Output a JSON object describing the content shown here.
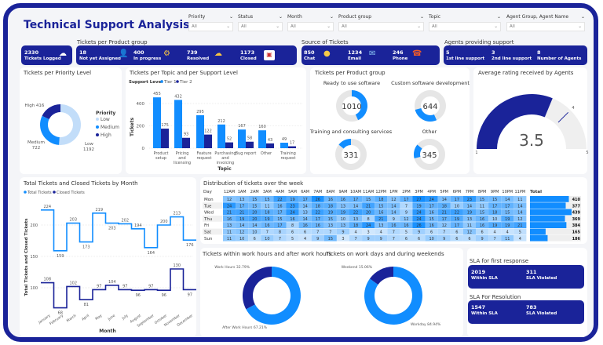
{
  "header": {
    "title": "Technical Support Analysis"
  },
  "filters": [
    {
      "label": "Priority",
      "value": "All"
    },
    {
      "label": "Status",
      "value": "All"
    },
    {
      "label": "Month",
      "value": "All"
    },
    {
      "label": "Product group",
      "value": "All"
    },
    {
      "label": "Topic",
      "value": "All"
    },
    {
      "label": "Agent Group, Agent Name",
      "value": "All"
    }
  ],
  "kpis": {
    "product_group_label": "Tickets per Product group",
    "logged": {
      "value": "2330",
      "label": "Tickets Logged",
      "icon": "ticket-cloud-icon"
    },
    "status": [
      {
        "value": "18",
        "label": "Not yet Assigned",
        "icon": "unassigned-user-icon"
      },
      {
        "value": "400",
        "label": "In progress",
        "icon": "gear-hand-icon"
      },
      {
        "value": "739",
        "label": "Resolved",
        "icon": "cloud-gear-icon"
      },
      {
        "value": "1173",
        "label": "Closed",
        "icon": "closed-sign-icon"
      }
    ],
    "source_label": "Source of Tickets",
    "source": [
      {
        "value": "850",
        "label": "Chat",
        "icon": "chat-icon"
      },
      {
        "value": "1234",
        "label": "Email",
        "icon": "email-icon"
      },
      {
        "value": "246",
        "label": "Phone",
        "icon": "phone-icon"
      }
    ],
    "agents_label": "Agents providing support",
    "agents": [
      {
        "value": "5",
        "label": "1st line support"
      },
      {
        "value": "3",
        "label": "2nd line support"
      },
      {
        "value": "8",
        "label": "Number of Agents"
      }
    ]
  },
  "colors": {
    "navy": "#1a2399",
    "blue": "#118dff",
    "light": "#c2ddf9",
    "gray": "#e6e6e6"
  },
  "chart_data": [
    {
      "id": "priority",
      "type": "pie",
      "title": "Tickets per Priority Level",
      "legend_title": "Priority",
      "legend_position": "right",
      "categories": [
        "Low",
        "Medium",
        "High"
      ],
      "values": [
        1192,
        722,
        416
      ],
      "labels": [
        "Low 1192",
        "Medium 722",
        "High 416"
      ]
    },
    {
      "id": "topic",
      "type": "bar",
      "title": "Tickets per Topic and per Support Level",
      "legend_title": "Support Level",
      "legend_position": "top-left",
      "xlabel": "Topic",
      "ylabel": "Tickets",
      "ylim": [
        0,
        480
      ],
      "yticks": [
        "0",
        "200",
        "400"
      ],
      "categories": [
        "Product setup",
        "Pricing and licensing",
        "Feature request",
        "Purchasing and invoicing",
        "Bug report",
        "Other",
        "Training request"
      ],
      "series": [
        {
          "name": "Tier 1",
          "values": [
            455,
            432,
            295,
            212,
            167,
            160,
            49
          ]
        },
        {
          "name": "Tier 2",
          "values": [
            175,
            93,
            122,
            52,
            58,
            43,
            17
          ]
        }
      ]
    },
    {
      "id": "product_group",
      "type": "pie",
      "title": "Tickets per Product group",
      "categories": [
        "Ready to use software",
        "Custom software development",
        "Other",
        "Training and consulting services"
      ],
      "values": [
        1010,
        644,
        345,
        331
      ]
    },
    {
      "id": "rating",
      "type": "gauge",
      "title": "Average rating received by Agents",
      "value": 3.5,
      "min": 1,
      "max": 5,
      "target": 4,
      "labels": {
        "value": "3.5",
        "min": "1",
        "max": "5",
        "target": "4"
      }
    },
    {
      "id": "monthly",
      "type": "line",
      "title": "Total Tickets and Closed Tickets by Month",
      "xlabel": "Month",
      "ylabel": "Total Tickets and Closed Tickets",
      "legend_position": "top-left",
      "grid": true,
      "yticks": [
        100,
        150,
        200
      ],
      "categories": [
        "January",
        "February",
        "March",
        "April",
        "May",
        "June",
        "July",
        "August",
        "September",
        "October",
        "November",
        "December"
      ],
      "series": [
        {
          "name": "Total Tickets",
          "values": [
            224,
            159,
            203,
            173,
            219,
            203,
            202,
            194,
            164,
            200,
            213,
            176
          ]
        },
        {
          "name": "Closed Tickets",
          "values": [
            108,
            68,
            102,
            81,
            97,
            104,
            97,
            96,
            97,
            96,
            130,
            97
          ]
        }
      ]
    },
    {
      "id": "week",
      "type": "heatmap",
      "title": "Distribution of tickets over the week",
      "row_header": "Day",
      "total_header": "Total",
      "columns": [
        "12AM",
        "1AM",
        "2AM",
        "3AM",
        "4AM",
        "5AM",
        "6AM",
        "7AM",
        "8AM",
        "9AM",
        "10AM",
        "11AM",
        "12PM",
        "1PM",
        "2PM",
        "3PM",
        "4PM",
        "5PM",
        "6PM",
        "7PM",
        "8PM",
        "9PM",
        "10PM",
        "11PM"
      ],
      "rows": [
        {
          "day": "Mon",
          "values": [
            12,
            13,
            15,
            15,
            22,
            19,
            17,
            26,
            16,
            16,
            17,
            15,
            18,
            12,
            17,
            27,
            24,
            14,
            17,
            23,
            15,
            15,
            14,
            11
          ],
          "total": 410
        },
        {
          "day": "Tue",
          "values": [
            24,
            17,
            15,
            11,
            16,
            23,
            14,
            18,
            18,
            13,
            14,
            21,
            15,
            14,
            7,
            19,
            17,
            18,
            10,
            14,
            11,
            17,
            17,
            14
          ],
          "total": 377
        },
        {
          "day": "Wed",
          "values": [
            21,
            21,
            20,
            18,
            17,
            24,
            13,
            22,
            19,
            19,
            22,
            20,
            16,
            14,
            9,
            24,
            16,
            21,
            22,
            19,
            15,
            18,
            15,
            14
          ],
          "total": 439
        },
        {
          "day": "Thu",
          "values": [
            16,
            19,
            20,
            19,
            15,
            16,
            14,
            17,
            15,
            10,
            13,
            8,
            21,
            9,
            12,
            24,
            15,
            17,
            19,
            13,
            16,
            10,
            19,
            12
          ],
          "total": 369
        },
        {
          "day": "Fri",
          "values": [
            13,
            14,
            14,
            16,
            17,
            8,
            16,
            16,
            13,
            13,
            18,
            24,
            13,
            16,
            16,
            26,
            16,
            12,
            17,
            11,
            16,
            19,
            19,
            21
          ],
          "total": 384
        },
        {
          "day": "Sat",
          "values": [
            11,
            12,
            10,
            7,
            8,
            6,
            6,
            7,
            7,
            9,
            4,
            3,
            4,
            7,
            5,
            9,
            6,
            7,
            6,
            12,
            6,
            4,
            4,
            5
          ],
          "total": 165
        },
        {
          "day": "Sun",
          "values": [
            11,
            10,
            6,
            10,
            7,
            5,
            4,
            9,
            15,
            3,
            7,
            9,
            9,
            7,
            6,
            6,
            10,
            9,
            6,
            6,
            9,
            7,
            11,
            4
          ],
          "total": 186
        }
      ]
    },
    {
      "id": "workhours",
      "type": "pie",
      "title": "Tickets within work hours and after work hours",
      "categories": [
        "After Work Hours",
        "Work Hours"
      ],
      "values": [
        67.21,
        32.79
      ],
      "labels": [
        "After Work Hours 67.21%",
        "Work Hours 32.79%"
      ]
    },
    {
      "id": "weekdays",
      "type": "pie",
      "title": "Tickets on work days and during weekends",
      "categories": [
        "Workday",
        "Weekend"
      ],
      "values": [
        84.94,
        15.06
      ],
      "labels": [
        "Workday 84.94%",
        "Weekend 15.06%"
      ]
    }
  ],
  "sla": {
    "first_response": {
      "title": "SLA for first response",
      "within": "2019",
      "within_label": "Within SLA",
      "violated": "311",
      "violated_label": "SLA Violated"
    },
    "resolution": {
      "title": "SLA For Resolution",
      "within": "1547",
      "within_label": "Within SLA",
      "violated": "783",
      "violated_label": "SLA Violated"
    }
  }
}
